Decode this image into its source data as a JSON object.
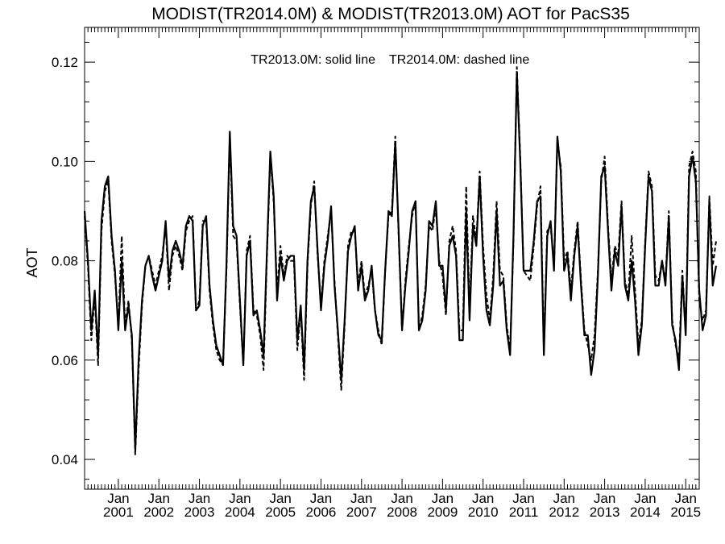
{
  "chart_data": {
    "type": "line",
    "title": "MODIST(TR2014.0M) & MODIST(TR2013.0M)  AOT for PacS35",
    "ylabel": "AOT",
    "xlabel": "",
    "annotation_solid": "TR2013.0M: solid line",
    "annotation_dashed": "TR2014.0M: dashed line",
    "ylim": [
      0.034,
      0.127
    ],
    "yticks": [
      0.04,
      0.06,
      0.08,
      0.1,
      0.12
    ],
    "ytick_labels": [
      "0.04",
      "0.06",
      "0.08",
      "0.10",
      "0.12"
    ],
    "x_start": "2000-03",
    "x_end": "2015-05",
    "x_month_label": "Jan",
    "x_year_labels": [
      "2001",
      "2002",
      "2003",
      "2004",
      "2005",
      "2006",
      "2007",
      "2008",
      "2009",
      "2010",
      "2011",
      "2012",
      "2013",
      "2014",
      "2015"
    ],
    "grid": false,
    "series": [
      {
        "name": "TR2013.0M",
        "style": "solid",
        "color": "#000000",
        "values": [
          0.09,
          0.08,
          0.066,
          0.074,
          0.061,
          0.088,
          0.095,
          0.097,
          0.085,
          0.078,
          0.066,
          0.08,
          0.066,
          0.071,
          0.065,
          0.042,
          0.06,
          0.072,
          0.079,
          0.081,
          0.077,
          0.074,
          0.077,
          0.08,
          0.088,
          0.076,
          0.082,
          0.084,
          0.082,
          0.079,
          0.087,
          0.089,
          0.088,
          0.07,
          0.071,
          0.087,
          0.089,
          0.075,
          0.068,
          0.063,
          0.061,
          0.059,
          0.079,
          0.106,
          0.087,
          0.085,
          0.072,
          0.059,
          0.081,
          0.084,
          0.069,
          0.07,
          0.066,
          0.061,
          0.082,
          0.102,
          0.093,
          0.072,
          0.081,
          0.076,
          0.08,
          0.081,
          0.081,
          0.064,
          0.071,
          0.058,
          0.08,
          0.092,
          0.095,
          0.082,
          0.07,
          0.079,
          0.084,
          0.091,
          0.075,
          0.066,
          0.056,
          0.068,
          0.082,
          0.085,
          0.087,
          0.074,
          0.079,
          0.072,
          0.074,
          0.079,
          0.07,
          0.065,
          0.064,
          0.078,
          0.09,
          0.089,
          0.104,
          0.086,
          0.066,
          0.075,
          0.082,
          0.09,
          0.092,
          0.066,
          0.068,
          0.074,
          0.088,
          0.087,
          0.092,
          0.079,
          0.079,
          0.07,
          0.083,
          0.085,
          0.081,
          0.064,
          0.064,
          0.09,
          0.068,
          0.087,
          0.083,
          0.097,
          0.081,
          0.07,
          0.067,
          0.075,
          0.09,
          0.075,
          0.076,
          0.066,
          0.061,
          0.085,
          0.118,
          0.1,
          0.078,
          0.078,
          0.078,
          0.084,
          0.092,
          0.093,
          0.061,
          0.085,
          0.088,
          0.078,
          0.105,
          0.098,
          0.078,
          0.081,
          0.072,
          0.081,
          0.087,
          0.075,
          0.065,
          0.065,
          0.057,
          0.062,
          0.077,
          0.097,
          0.099,
          0.086,
          0.074,
          0.082,
          0.079,
          0.091,
          0.075,
          0.072,
          0.08,
          0.072,
          0.061,
          0.067,
          0.083,
          0.097,
          0.094,
          0.075,
          0.075,
          0.08,
          0.075,
          0.089,
          0.067,
          0.064,
          0.058,
          0.077,
          0.065,
          0.097,
          0.101,
          0.096,
          0.074,
          0.066,
          0.069,
          0.092,
          0.075,
          0.079
        ]
      },
      {
        "name": "TR2014.0M",
        "style": "dashed",
        "color": "#000000",
        "values": [
          0.089,
          0.079,
          0.064,
          0.073,
          0.059,
          0.086,
          0.094,
          0.096,
          0.084,
          0.077,
          0.067,
          0.085,
          0.067,
          0.072,
          0.064,
          0.041,
          0.058,
          0.071,
          0.079,
          0.081,
          0.078,
          0.075,
          0.078,
          0.081,
          0.087,
          0.074,
          0.081,
          0.083,
          0.081,
          0.078,
          0.086,
          0.088,
          0.089,
          0.07,
          0.072,
          0.088,
          0.088,
          0.074,
          0.067,
          0.062,
          0.06,
          0.059,
          0.078,
          0.105,
          0.085,
          0.084,
          0.071,
          0.059,
          0.082,
          0.085,
          0.07,
          0.069,
          0.065,
          0.058,
          0.081,
          0.101,
          0.092,
          0.074,
          0.083,
          0.077,
          0.081,
          0.08,
          0.08,
          0.062,
          0.07,
          0.056,
          0.079,
          0.091,
          0.096,
          0.081,
          0.071,
          0.08,
          0.085,
          0.09,
          0.076,
          0.065,
          0.054,
          0.067,
          0.083,
          0.086,
          0.086,
          0.075,
          0.08,
          0.073,
          0.075,
          0.078,
          0.07,
          0.066,
          0.063,
          0.078,
          0.089,
          0.09,
          0.105,
          0.085,
          0.066,
          0.076,
          0.083,
          0.089,
          0.092,
          0.066,
          0.069,
          0.075,
          0.087,
          0.086,
          0.091,
          0.08,
          0.077,
          0.069,
          0.084,
          0.087,
          0.082,
          0.066,
          0.066,
          0.095,
          0.07,
          0.089,
          0.084,
          0.098,
          0.083,
          0.073,
          0.068,
          0.077,
          0.092,
          0.078,
          0.077,
          0.067,
          0.062,
          0.084,
          0.119,
          0.101,
          0.078,
          0.077,
          0.076,
          0.083,
          0.091,
          0.095,
          0.062,
          0.086,
          0.087,
          0.079,
          0.104,
          0.099,
          0.08,
          0.082,
          0.074,
          0.082,
          0.088,
          0.076,
          0.066,
          0.063,
          0.06,
          0.065,
          0.078,
          0.096,
          0.101,
          0.087,
          0.076,
          0.083,
          0.081,
          0.092,
          0.076,
          0.073,
          0.085,
          0.074,
          0.063,
          0.068,
          0.084,
          0.098,
          0.095,
          0.077,
          0.076,
          0.08,
          0.076,
          0.09,
          0.068,
          0.063,
          0.06,
          0.078,
          0.066,
          0.099,
          0.102,
          0.098,
          0.072,
          0.068,
          0.07,
          0.093,
          0.079,
          0.084
        ]
      }
    ]
  }
}
